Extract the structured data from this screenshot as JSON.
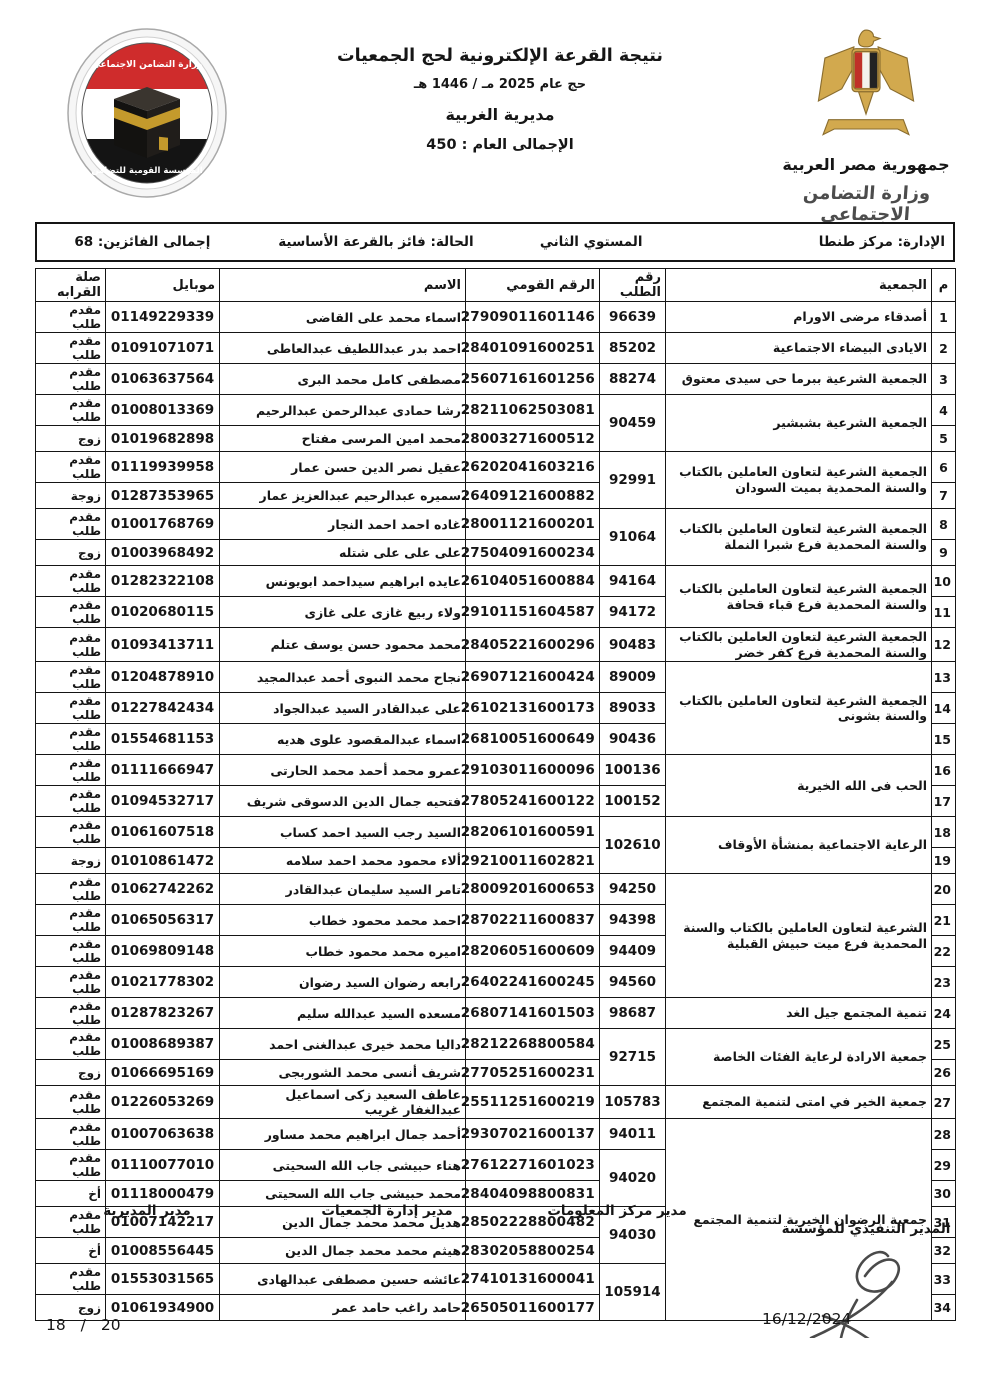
{
  "header": {
    "title_line1": "نتيجة القرعة الإلكترونية لحج الجمعيات",
    "title_line2": "حج عام 2025 مـ / 1446 هـ",
    "title_line3": "مديرية الغربية",
    "title_line4": "الإجمالى العام : 450",
    "left_logo": {
      "icon": "kaaba-emblem-icon",
      "top_text": "وزارة التضامن الاجتماعي",
      "bottom_text": "المؤسسة القومية للتضامن"
    },
    "right_logo": {
      "icon": "egypt-eagle-icon",
      "country": "جمهورية مصر العربية",
      "ministry": "وزارة التضامن الاجتماعى"
    }
  },
  "colors": {
    "flag_red": "#cf2c2c",
    "flag_black": "#141414",
    "eagle_gold": "#d2a94e",
    "text_black": "#161616"
  },
  "table": {
    "info": {
      "admin": "الإدارة:  مركز طنطا",
      "level": "المستوي الثاني",
      "status": "الحالة:  فائز بالقرعة الأساسية",
      "winners": "إجمالى الفائزين:  68"
    },
    "columns": [
      "م",
      "الجمعية",
      "رقم الطلب",
      "الرقم القومي",
      "الاسم",
      "موبايل",
      "صلة القرابه"
    ],
    "rows": [
      {
        "num": "1",
        "assoc": "أصدقاء مرضى الاورام",
        "req": "96639",
        "nid": "27909011601146",
        "name": "اسماء محمد على القاضى",
        "mobile": "01149229339",
        "rel": "مقدم طلب"
      },
      {
        "num": "2",
        "assoc": "الايادى البيضاء الاجتماعية",
        "req": "85202",
        "nid": "28401091600251",
        "name": "احمد بدر عبداللطيف عبدالعاطى",
        "mobile": "01091071071",
        "rel": "مقدم طلب"
      },
      {
        "num": "3",
        "assoc": "الجمعية الشرعية ببرما حى سيدى معتوق",
        "req": "88274",
        "nid": "25607161601256",
        "name": "مصطفى كامل محمد البرى",
        "mobile": "01063637564",
        "rel": "مقدم طلب"
      },
      {
        "num": "4",
        "assoc": "الجمعية الشرعية بشبشير",
        "assoc_span": 2,
        "req": "90459",
        "req_span": 2,
        "nid": "28211062503081",
        "name": "رشا حمادى عبدالرحمن عبدالرحيم",
        "mobile": "01008013369",
        "rel": "مقدم طلب"
      },
      {
        "num": "5",
        "assoc": null,
        "req": null,
        "nid": "28003271600512",
        "name": "محمد امين المرسى مفتاح",
        "mobile": "01019682898",
        "rel": "زوج"
      },
      {
        "num": "6",
        "assoc": "الجمعية الشرعية لتعاون العاملين بالكتاب والسنة المحمدية بميت السودان",
        "assoc_span": 2,
        "req": "92991",
        "req_span": 2,
        "nid": "26202041603216",
        "name": "عقيل نصر الدين حسن عمار",
        "mobile": "01119939958",
        "rel": "مقدم طلب"
      },
      {
        "num": "7",
        "assoc": null,
        "req": null,
        "nid": "26409121600882",
        "name": "سميره عبدالرحيم عبدالعزيز عمار",
        "mobile": "01287353965",
        "rel": "زوجة"
      },
      {
        "num": "8",
        "assoc": "الجمعية الشرعية لتعاون العاملين بالكتاب والسنة المحمدية فرع شبرا النملة",
        "assoc_span": 2,
        "req": "91064",
        "req_span": 2,
        "nid": "28001121600201",
        "name": "غاده احمد احمد النجار",
        "mobile": "01001768769",
        "rel": "مقدم طلب"
      },
      {
        "num": "9",
        "assoc": null,
        "req": null,
        "nid": "27504091600234",
        "name": "على على على شتله",
        "mobile": "01003968492",
        "rel": "زوج"
      },
      {
        "num": "10",
        "assoc": "الجمعية الشرعية لتعاون العاملين بالكتاب والسنة المحمدية فرع قباء قحافة",
        "assoc_span": 2,
        "req": "94164",
        "nid": "26104051600884",
        "name": "عايده ابراهيم سيداحمد ابويونس",
        "mobile": "01282322108",
        "rel": "مقدم طلب"
      },
      {
        "num": "11",
        "assoc": null,
        "req": "94172",
        "nid": "29101151604587",
        "name": "ولاء ربيع غازى على غازى",
        "mobile": "01020680115",
        "rel": "مقدم طلب"
      },
      {
        "num": "12",
        "assoc": "الجمعية الشرعية لتعاون العاملين بالكتاب والسنة المحمدية فرع كفر خضر",
        "req": "90483",
        "nid": "28405221600296",
        "name": "محمد محمود حسن يوسف عتلم",
        "mobile": "01093413711",
        "rel": "مقدم طلب"
      },
      {
        "num": "13",
        "assoc": "الجمعية الشرعية لتعاون العاملين بالكتاب والسنة بشونى",
        "assoc_span": 3,
        "req": "89009",
        "nid": "26907121600424",
        "name": "نجاح محمد النبوى أحمد عبدالمجيد",
        "mobile": "01204878910",
        "rel": "مقدم طلب"
      },
      {
        "num": "14",
        "assoc": null,
        "req": "89033",
        "nid": "26102131600173",
        "name": "على عبدالقادر السيد عبدالجواد",
        "mobile": "01227842434",
        "rel": "مقدم طلب"
      },
      {
        "num": "15",
        "assoc": null,
        "req": "90436",
        "nid": "26810051600649",
        "name": "اسماء عبدالمقصود علوى هديه",
        "mobile": "01554681153",
        "rel": "مقدم طلب"
      },
      {
        "num": "16",
        "assoc": "الحب فى الله الخيرية",
        "assoc_span": 2,
        "req": "100136",
        "nid": "29103011600096",
        "name": "عمرو محمد أحمد محمد الحارتى",
        "mobile": "01111666947",
        "rel": "مقدم طلب"
      },
      {
        "num": "17",
        "assoc": null,
        "req": "100152",
        "nid": "27805241600122",
        "name": "فتحيه جمال الدين الدسوقى شريف",
        "mobile": "01094532717",
        "rel": "مقدم طلب"
      },
      {
        "num": "18",
        "assoc": "الرعاية الاجتماعية بمنشأة الأوقاف",
        "assoc_span": 2,
        "req": "102610",
        "req_span": 2,
        "nid": "28206101600591",
        "name": "السيد رجب السيد احمد كساب",
        "mobile": "01061607518",
        "rel": "مقدم طلب"
      },
      {
        "num": "19",
        "assoc": null,
        "req": null,
        "nid": "29210011602821",
        "name": "ألاء محمود محمد احمد سلامه",
        "mobile": "01010861472",
        "rel": "زوجة"
      },
      {
        "num": "20",
        "assoc": "الشرعية لتعاون العاملين بالكتاب والسنة المحمدية فرع ميت حبيش القبلية",
        "assoc_span": 4,
        "req": "94250",
        "nid": "28009201600653",
        "name": "تامر السيد سليمان عبدالقادر",
        "mobile": "01062742262",
        "rel": "مقدم طلب"
      },
      {
        "num": "21",
        "assoc": null,
        "req": "94398",
        "nid": "28702211600837",
        "name": "احمد محمد محمود خطاب",
        "mobile": "01065056317",
        "rel": "مقدم طلب"
      },
      {
        "num": "22",
        "assoc": null,
        "req": "94409",
        "nid": "28206051600609",
        "name": "اميره محمد محمود خطاب",
        "mobile": "01069809148",
        "rel": "مقدم طلب"
      },
      {
        "num": "23",
        "assoc": null,
        "req": "94560",
        "nid": "26402241600245",
        "name": "رابعه رضوان السيد رضوان",
        "mobile": "01021778302",
        "rel": "مقدم طلب"
      },
      {
        "num": "24",
        "assoc": "تنمية المجتمع جيل الغد",
        "req": "98687",
        "nid": "26807141601503",
        "name": "مسعده السيد عبدالله سليم",
        "mobile": "01287823267",
        "rel": "مقدم طلب"
      },
      {
        "num": "25",
        "assoc": "جمعية الارادة لرعاية الفئات الخاصة",
        "assoc_span": 2,
        "req": "92715",
        "req_span": 2,
        "nid": "28212268800584",
        "name": "داليا محمد خيرى عبدالغنى احمد",
        "mobile": "01008689387",
        "rel": "مقدم طلب"
      },
      {
        "num": "26",
        "assoc": null,
        "req": null,
        "nid": "27705251600231",
        "name": "شريف أنسى محمد الشوربجى",
        "mobile": "01066695169",
        "rel": "زوج"
      },
      {
        "num": "27",
        "assoc": "جمعية الخير في امتى لتنمية المجتمع",
        "req": "105783",
        "nid": "25511251600219",
        "name": "عاطف السعيد زكى اسماعيل عبدالغفار غريب",
        "mobile": "01226053269",
        "rel": "مقدم طلب"
      },
      {
        "num": "28",
        "assoc": "جمعية الرضوان الخيرية لتنمية المجتمع",
        "assoc_span": 7,
        "req": "94011",
        "nid": "29307021600137",
        "name": "أحمد جمال ابراهيم محمد مساور",
        "mobile": "01007063638",
        "rel": "مقدم طلب"
      },
      {
        "num": "29",
        "assoc": null,
        "req": "94020",
        "req_span": 2,
        "nid": "27612271601023",
        "name": "هناء حبيشى جاب الله السحيتى",
        "mobile": "01110077010",
        "rel": "مقدم طلب"
      },
      {
        "num": "30",
        "assoc": null,
        "req": null,
        "nid": "28404098800831",
        "name": "محمد حبيشى جاب الله السحيتى",
        "mobile": "01118000479",
        "rel": "أخ"
      },
      {
        "num": "31",
        "assoc": null,
        "req": "94030",
        "req_span": 2,
        "nid": "28502228800482",
        "name": "هديل محمد محمد جمال الدين",
        "mobile": "01007142217",
        "rel": "مقدم طلب"
      },
      {
        "num": "32",
        "assoc": null,
        "req": null,
        "nid": "28302058800254",
        "name": "هيثم محمد محمد جمال الدين",
        "mobile": "01008556445",
        "rel": "أخ"
      },
      {
        "num": "33",
        "assoc": null,
        "req": "105914",
        "req_span": 2,
        "nid": "27410131600041",
        "name": "عائشه حسين مصطفى عبدالهادى",
        "mobile": "01553031565",
        "rel": "مقدم طلب"
      },
      {
        "num": "34",
        "assoc": null,
        "req": null,
        "nid": "26505011600177",
        "name": "حامد راغب حامد عمر",
        "mobile": "01061934900",
        "rel": "زوج"
      }
    ]
  },
  "footer": {
    "sig_info_center": "مدير مركز المعلومات",
    "sig_associations": "مدير إدارة الجمعيات",
    "sig_directorate": "مدير المديرية",
    "sig_executive": "المدير التنفيذي للمؤسسة",
    "signature_icon": "signature-scribble-icon",
    "date": "16/12/2024",
    "page": {
      "current": "18",
      "separator": "/",
      "total": "20"
    }
  }
}
